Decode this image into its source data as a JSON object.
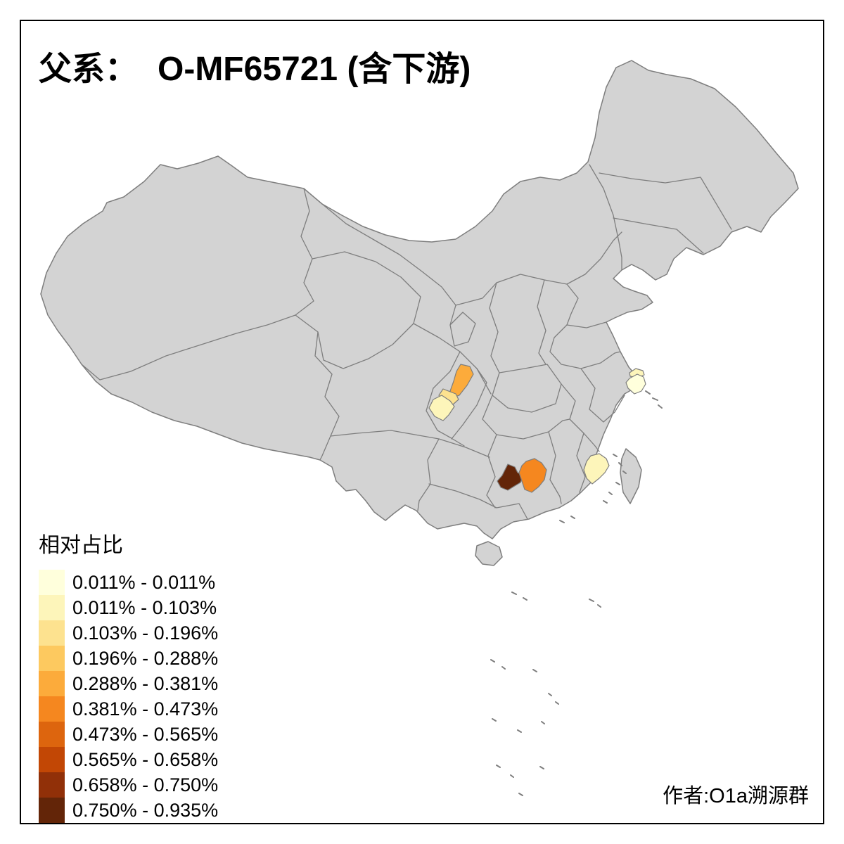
{
  "title": {
    "prefix": "父系：",
    "main": "O-MF65721 (含下游)"
  },
  "legend": {
    "title": "相对占比",
    "classes": [
      {
        "label": "0.011% - 0.011%",
        "color": "#FFFFDC"
      },
      {
        "label": "0.011% - 0.103%",
        "color": "#FDF5BA"
      },
      {
        "label": "0.103% - 0.196%",
        "color": "#FDE28F"
      },
      {
        "label": "0.196% - 0.288%",
        "color": "#FDC95F"
      },
      {
        "label": "0.288% - 0.381%",
        "color": "#FCAB3B"
      },
      {
        "label": "0.381% - 0.473%",
        "color": "#F5871F"
      },
      {
        "label": "0.473% - 0.565%",
        "color": "#DD650E"
      },
      {
        "label": "0.565% - 0.658%",
        "color": "#C24705"
      },
      {
        "label": "0.658% - 0.750%",
        "color": "#913008"
      },
      {
        "label": "0.750% - 0.935%",
        "color": "#632508"
      }
    ]
  },
  "credit": "作者:O1a溯源群",
  "map": {
    "base_fill": "#D3D3D3",
    "border_color": "#7E7E7E",
    "background": "#FFFFFF",
    "frame_color": "#000000",
    "regions": [
      {
        "name": "chongqing-northeast",
        "class_index": 4,
        "range": "0.288% - 0.381%"
      },
      {
        "name": "chongqing-central",
        "class_index": 2,
        "range": "0.103% - 0.196%"
      },
      {
        "name": "chongqing-south",
        "class_index": 1,
        "range": "0.011% - 0.103%"
      },
      {
        "name": "hunan-west",
        "class_index": 9,
        "range": "0.750% - 0.935%"
      },
      {
        "name": "hunan-central",
        "class_index": 5,
        "range": "0.381% - 0.473%"
      },
      {
        "name": "fujian-coastal",
        "class_index": 1,
        "range": "0.011% - 0.103%"
      },
      {
        "name": "shanghai",
        "class_index": 0,
        "range": "0.011% - 0.011%"
      },
      {
        "name": "shanghai-north",
        "class_index": 1,
        "range": "0.011% - 0.103%"
      }
    ]
  }
}
